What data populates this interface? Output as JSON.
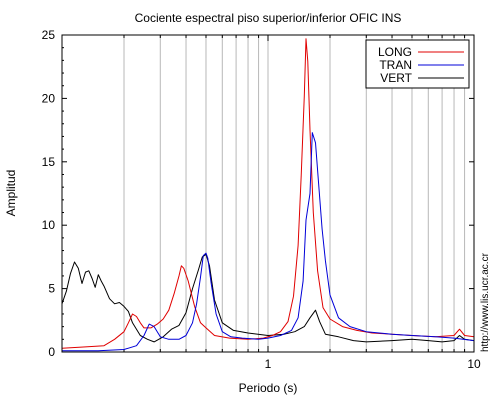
{
  "chart_data": {
    "type": "line",
    "title": "Cociente espectral piso superior/inferior  OFIC INS",
    "xlabel": "Periodo (s)",
    "ylabel": "Amplitud",
    "xscale": "log",
    "xlim": [
      0.1,
      10
    ],
    "ylim": [
      0,
      25
    ],
    "x_ticks": [
      1,
      10
    ],
    "x_tick_labels": [
      "1",
      "10"
    ],
    "y_ticks": [
      0,
      5,
      10,
      15,
      20,
      25
    ],
    "y_tick_labels": [
      "0",
      "5",
      "10",
      "15",
      "20",
      "25"
    ],
    "grid": "vertical",
    "legend_position": "top-right",
    "side_text": "http://www.lis.ucr.ac.cr",
    "series": [
      {
        "name": "LONG",
        "color": "#e00000",
        "points": [
          [
            0.1,
            0.3
          ],
          [
            0.13,
            0.4
          ],
          [
            0.16,
            0.5
          ],
          [
            0.18,
            1.0
          ],
          [
            0.2,
            1.6
          ],
          [
            0.21,
            2.3
          ],
          [
            0.22,
            3.0
          ],
          [
            0.23,
            2.8
          ],
          [
            0.24,
            2.3
          ],
          [
            0.25,
            1.9
          ],
          [
            0.27,
            1.9
          ],
          [
            0.29,
            2.2
          ],
          [
            0.31,
            2.6
          ],
          [
            0.33,
            3.3
          ],
          [
            0.35,
            4.6
          ],
          [
            0.37,
            6.0
          ],
          [
            0.38,
            6.8
          ],
          [
            0.39,
            6.6
          ],
          [
            0.41,
            5.6
          ],
          [
            0.44,
            3.6
          ],
          [
            0.47,
            2.3
          ],
          [
            0.5,
            1.9
          ],
          [
            0.55,
            1.3
          ],
          [
            0.65,
            1.1
          ],
          [
            0.8,
            1.0
          ],
          [
            0.95,
            1.1
          ],
          [
            1.05,
            1.3
          ],
          [
            1.15,
            1.6
          ],
          [
            1.25,
            2.4
          ],
          [
            1.33,
            4.4
          ],
          [
            1.4,
            8.4
          ],
          [
            1.45,
            13.9
          ],
          [
            1.5,
            20.2
          ],
          [
            1.53,
            24.7
          ],
          [
            1.56,
            22.9
          ],
          [
            1.6,
            17.5
          ],
          [
            1.66,
            11.0
          ],
          [
            1.74,
            6.4
          ],
          [
            1.85,
            3.5
          ],
          [
            2.0,
            2.6
          ],
          [
            2.3,
            2.0
          ],
          [
            2.7,
            1.7
          ],
          [
            3.2,
            1.5
          ],
          [
            4.0,
            1.4
          ],
          [
            5.0,
            1.3
          ],
          [
            6.5,
            1.2
          ],
          [
            8.0,
            1.3
          ],
          [
            8.5,
            1.8
          ],
          [
            9.0,
            1.3
          ],
          [
            10.0,
            1.2
          ]
        ]
      },
      {
        "name": "TRAN",
        "color": "#0000d8",
        "points": [
          [
            0.1,
            0.1
          ],
          [
            0.15,
            0.1
          ],
          [
            0.2,
            0.2
          ],
          [
            0.23,
            0.5
          ],
          [
            0.25,
            1.3
          ],
          [
            0.265,
            2.2
          ],
          [
            0.28,
            2.0
          ],
          [
            0.3,
            1.2
          ],
          [
            0.33,
            1.0
          ],
          [
            0.37,
            1.0
          ],
          [
            0.4,
            1.3
          ],
          [
            0.43,
            2.3
          ],
          [
            0.45,
            3.8
          ],
          [
            0.47,
            5.9
          ],
          [
            0.485,
            7.6
          ],
          [
            0.5,
            7.8
          ],
          [
            0.51,
            7.4
          ],
          [
            0.53,
            5.4
          ],
          [
            0.56,
            3.0
          ],
          [
            0.6,
            1.6
          ],
          [
            0.66,
            1.2
          ],
          [
            0.75,
            1.1
          ],
          [
            0.9,
            1.0
          ],
          [
            1.0,
            1.1
          ],
          [
            1.15,
            1.3
          ],
          [
            1.3,
            1.7
          ],
          [
            1.4,
            2.7
          ],
          [
            1.48,
            5.6
          ],
          [
            1.53,
            10.4
          ],
          [
            1.6,
            12.5
          ],
          [
            1.64,
            17.3
          ],
          [
            1.7,
            16.5
          ],
          [
            1.76,
            13.3
          ],
          [
            1.83,
            9.7
          ],
          [
            1.9,
            7.2
          ],
          [
            2.0,
            4.5
          ],
          [
            2.2,
            2.7
          ],
          [
            2.5,
            2.0
          ],
          [
            3.0,
            1.6
          ],
          [
            4.0,
            1.4
          ],
          [
            5.0,
            1.3
          ],
          [
            6.5,
            1.2
          ],
          [
            8.0,
            1.1
          ],
          [
            10.0,
            0.9
          ]
        ]
      },
      {
        "name": "VERT",
        "color": "#000000",
        "points": [
          [
            0.1,
            3.8
          ],
          [
            0.105,
            4.8
          ],
          [
            0.11,
            6.2
          ],
          [
            0.115,
            7.1
          ],
          [
            0.12,
            6.6
          ],
          [
            0.125,
            5.4
          ],
          [
            0.13,
            6.3
          ],
          [
            0.135,
            6.4
          ],
          [
            0.14,
            5.8
          ],
          [
            0.145,
            5.1
          ],
          [
            0.15,
            6.1
          ],
          [
            0.155,
            5.6
          ],
          [
            0.16,
            5.2
          ],
          [
            0.17,
            4.2
          ],
          [
            0.18,
            3.8
          ],
          [
            0.19,
            3.9
          ],
          [
            0.2,
            3.6
          ],
          [
            0.21,
            3.2
          ],
          [
            0.22,
            2.3
          ],
          [
            0.24,
            1.3
          ],
          [
            0.26,
            1.0
          ],
          [
            0.28,
            0.8
          ],
          [
            0.31,
            1.2
          ],
          [
            0.34,
            1.8
          ],
          [
            0.37,
            2.1
          ],
          [
            0.4,
            3.1
          ],
          [
            0.43,
            5.0
          ],
          [
            0.46,
            6.5
          ],
          [
            0.48,
            7.5
          ],
          [
            0.5,
            7.7
          ],
          [
            0.52,
            6.8
          ],
          [
            0.55,
            4.1
          ],
          [
            0.6,
            2.3
          ],
          [
            0.68,
            1.7
          ],
          [
            0.8,
            1.5
          ],
          [
            1.0,
            1.3
          ],
          [
            1.2,
            1.4
          ],
          [
            1.35,
            1.6
          ],
          [
            1.5,
            2.0
          ],
          [
            1.6,
            2.7
          ],
          [
            1.7,
            3.3
          ],
          [
            1.78,
            2.4
          ],
          [
            1.9,
            1.4
          ],
          [
            2.2,
            1.2
          ],
          [
            2.6,
            0.9
          ],
          [
            3.0,
            0.8
          ],
          [
            4.0,
            0.9
          ],
          [
            5.0,
            1.0
          ],
          [
            6.0,
            0.9
          ],
          [
            7.0,
            0.8
          ],
          [
            8.0,
            0.9
          ],
          [
            8.5,
            1.3
          ],
          [
            9.0,
            1.0
          ],
          [
            10.0,
            0.9
          ]
        ]
      }
    ]
  }
}
